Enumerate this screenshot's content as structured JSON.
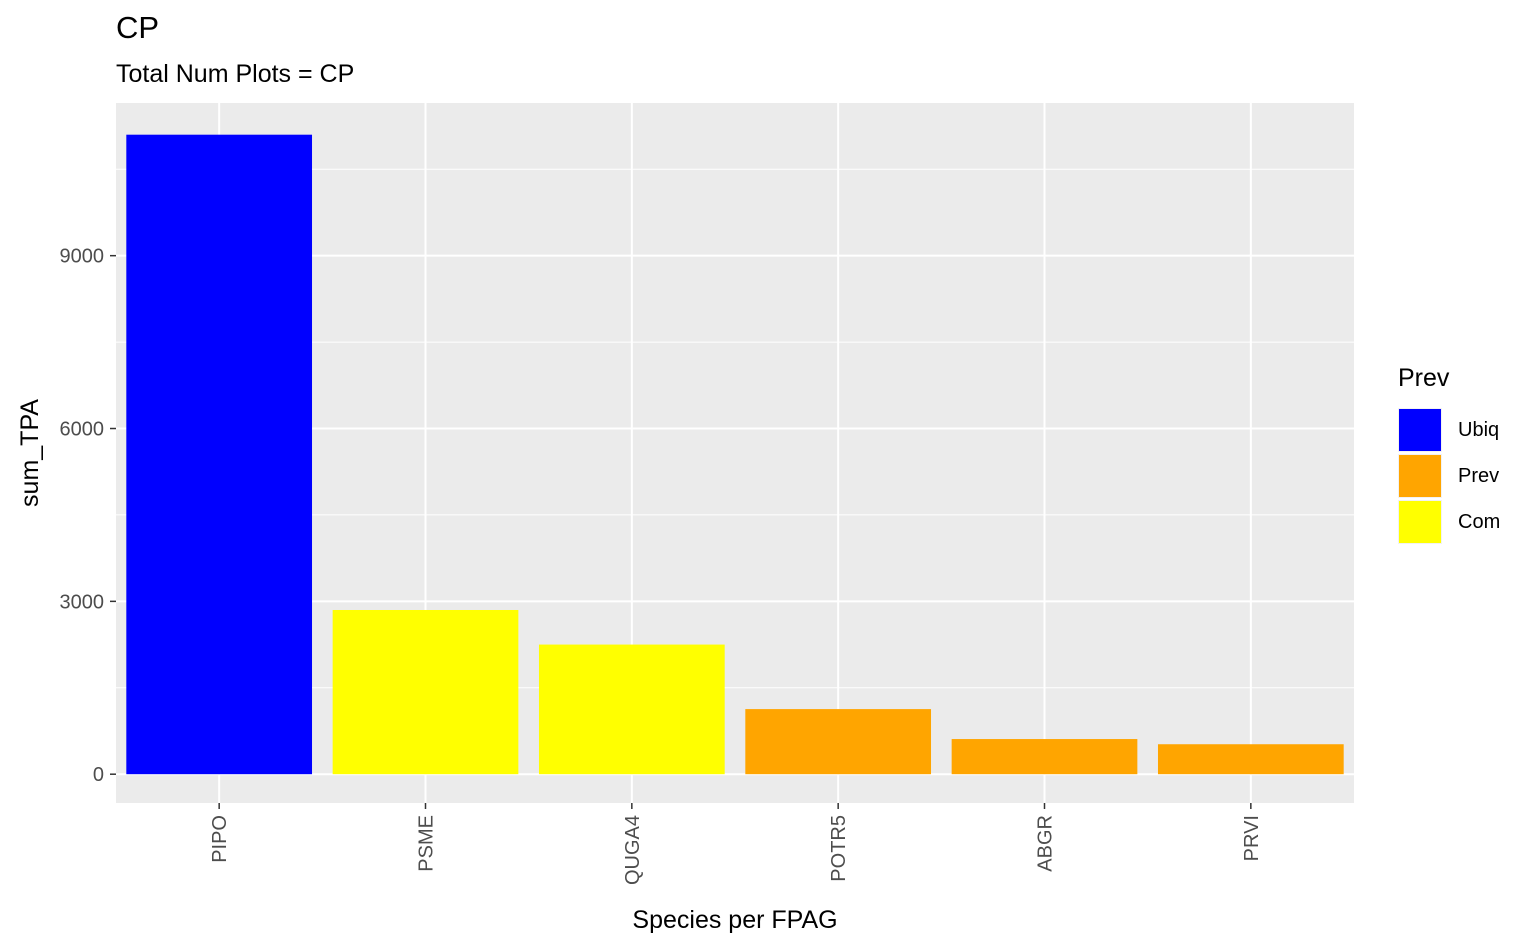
{
  "chart_data": {
    "type": "bar",
    "title": "CP",
    "subtitle": "Total Num Plots = CP",
    "xlabel": "Species per FPAG",
    "ylabel": "sum_TPA",
    "categories": [
      "PIPO",
      "PSME",
      "QUGA4",
      "POTR5",
      "ABGR",
      "PRVI"
    ],
    "values": [
      11100,
      2850,
      2250,
      1130,
      610,
      520
    ],
    "groups": [
      "Ubiq",
      "Com",
      "Com",
      "Prev",
      "Prev",
      "Prev"
    ],
    "ylim": [
      -500,
      11650
    ],
    "yticks": [
      0,
      3000,
      6000,
      9000
    ],
    "grid": true,
    "legend": {
      "title": "Prev",
      "position": "right",
      "items": [
        {
          "label": "Ubiq",
          "color": "#0000ff"
        },
        {
          "label": "Prev",
          "color": "#ffa500"
        },
        {
          "label": "Com",
          "color": "#ffff00"
        }
      ]
    },
    "panel_color": "#ebebeb",
    "grid_color": "#ffffff"
  }
}
